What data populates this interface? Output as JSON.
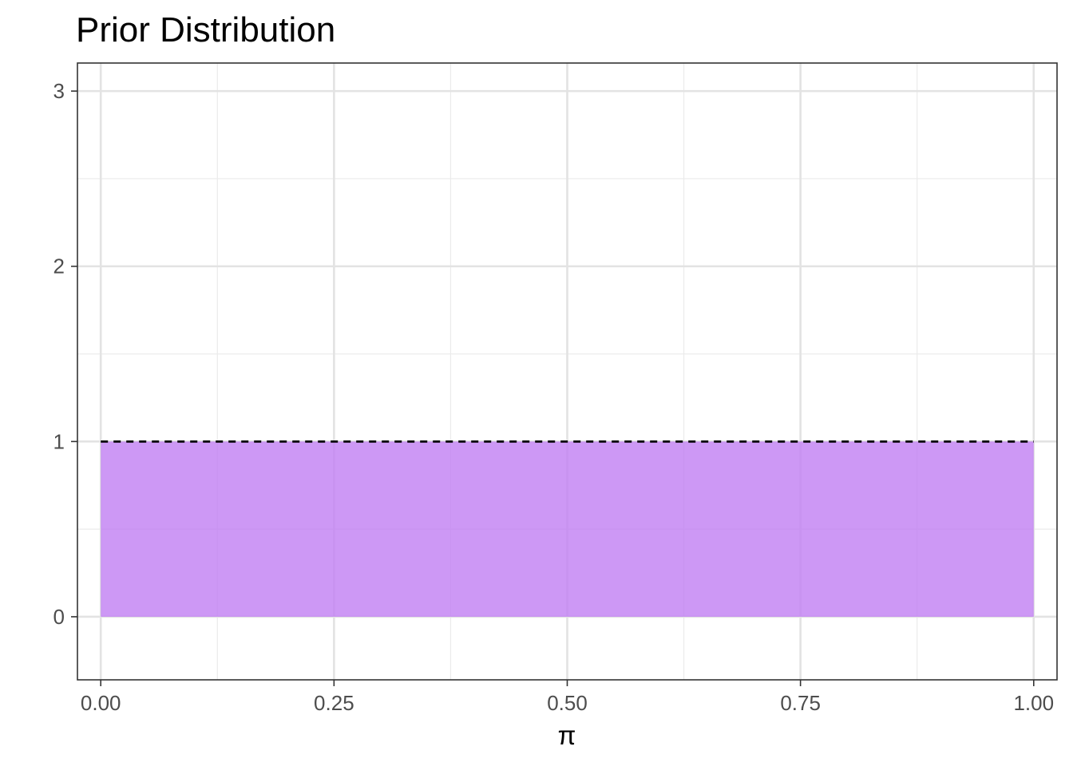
{
  "chart_data": {
    "type": "area",
    "title": "Prior Distribution",
    "xlabel": "π",
    "ylabel": "",
    "x_ticks": [
      0,
      0.25,
      0.5,
      0.75,
      1
    ],
    "x_tick_labels": [
      "0.00",
      "0.25",
      "0.50",
      "0.75",
      "1.00"
    ],
    "y_ticks": [
      0,
      1,
      2,
      3
    ],
    "y_tick_labels": [
      "0",
      "1",
      "2",
      "3"
    ],
    "xlim": [
      -0.025,
      1.025
    ],
    "ylim": [
      -0.36,
      3.16
    ],
    "grid": true,
    "series": [
      {
        "x": [
          0,
          1
        ],
        "y": [
          1,
          1
        ],
        "fill": "#c07ef2",
        "fill_opacity": 0.8,
        "line_color": "#000000",
        "line_style": "dashed"
      }
    ]
  }
}
